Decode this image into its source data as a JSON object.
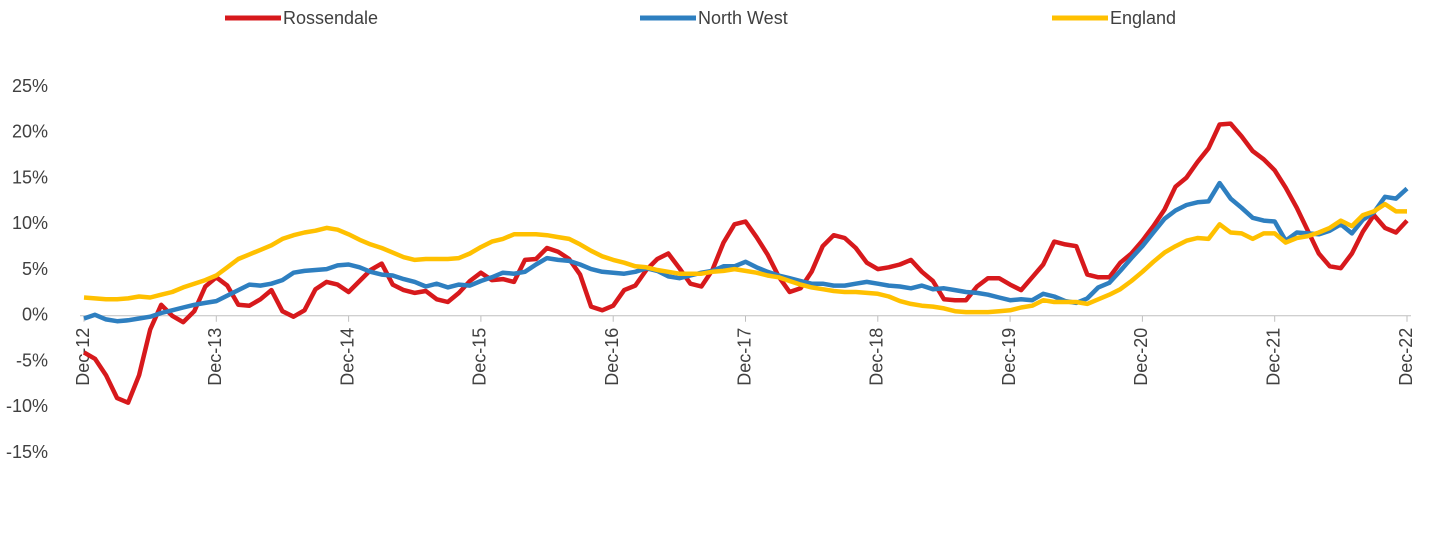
{
  "chart_data": {
    "type": "line",
    "categories": [
      "Dec-12",
      null,
      null,
      null,
      null,
      null,
      null,
      null,
      null,
      null,
      null,
      null,
      "Dec-13",
      null,
      null,
      null,
      null,
      null,
      null,
      null,
      null,
      null,
      null,
      null,
      "Dec-14",
      null,
      null,
      null,
      null,
      null,
      null,
      null,
      null,
      null,
      null,
      null,
      "Dec-15",
      null,
      null,
      null,
      null,
      null,
      null,
      null,
      null,
      null,
      null,
      null,
      "Dec-16",
      null,
      null,
      null,
      null,
      null,
      null,
      null,
      null,
      null,
      null,
      null,
      "Dec-17",
      null,
      null,
      null,
      null,
      null,
      null,
      null,
      null,
      null,
      null,
      null,
      "Dec-18",
      null,
      null,
      null,
      null,
      null,
      null,
      null,
      null,
      null,
      null,
      null,
      "Dec-19",
      null,
      null,
      null,
      null,
      null,
      null,
      null,
      null,
      null,
      null,
      null,
      "Dec-20",
      null,
      null,
      null,
      null,
      null,
      null,
      null,
      null,
      null,
      null,
      null,
      "Dec-21",
      null,
      null,
      null,
      null,
      null,
      null,
      null,
      null,
      null,
      null,
      null,
      "Dec-22"
    ],
    "series": [
      {
        "name": "Rossendale",
        "color": "#d7191c",
        "values": [
          -4,
          -4.7,
          -6.5,
          -9,
          -9.5,
          -6.5,
          -1.5,
          1.2,
          0,
          -0.7,
          0.5,
          3.2,
          4.2,
          3.3,
          1.2,
          1.1,
          1.8,
          2.8,
          0.5,
          -0.1,
          0.6,
          2.9,
          3.7,
          3.4,
          2.6,
          3.8,
          5,
          5.7,
          3.4,
          2.8,
          2.5,
          2.7,
          1.8,
          1.5,
          2.5,
          3.8,
          4.7,
          3.9,
          4,
          3.7,
          6.1,
          6.2,
          7.4,
          7,
          6.2,
          4.5,
          1,
          0.6,
          1.1,
          2.8,
          3.3,
          5,
          6.2,
          6.8,
          5.2,
          3.5,
          3.2,
          5,
          8,
          10,
          10.3,
          8.6,
          6.7,
          4.3,
          2.6,
          3,
          4.8,
          7.6,
          8.8,
          8.5,
          7.4,
          5.8,
          5.1,
          5.3,
          5.6,
          6.1,
          4.8,
          3.8,
          1.8,
          1.7,
          1.7,
          3.2,
          4.1,
          4.1,
          3.4,
          2.8,
          4.2,
          5.6,
          8.1,
          7.8,
          7.6,
          4.5,
          4.2,
          4.2,
          5.8,
          6.8,
          8.2,
          9.8,
          11.6,
          14.1,
          15.1,
          16.8,
          18.3,
          20.9,
          21,
          19.6,
          18,
          17.1,
          15.9,
          14,
          11.8,
          9.3,
          6.8,
          5.4,
          5.2,
          6.8,
          9.2,
          11,
          9.6,
          9.1,
          10.4
        ]
      },
      {
        "name": "North West",
        "color": "#2e7fc0",
        "values": [
          -0.3,
          0.1,
          -0.4,
          -0.6,
          -0.5,
          -0.3,
          -0.1,
          0.3,
          0.6,
          0.9,
          1.2,
          1.4,
          1.6,
          2.2,
          2.8,
          3.4,
          3.3,
          3.5,
          3.9,
          4.7,
          4.9,
          5,
          5.1,
          5.5,
          5.6,
          5.3,
          4.8,
          4.5,
          4.4,
          4,
          3.7,
          3.2,
          3.5,
          3.1,
          3.4,
          3.3,
          3.8,
          4.2,
          4.7,
          4.6,
          4.8,
          5.6,
          6.3,
          6.1,
          6,
          5.6,
          5.1,
          4.8,
          4.7,
          4.6,
          4.8,
          5.2,
          4.9,
          4.3,
          4.1,
          4.4,
          4.7,
          4.9,
          5.4,
          5.4,
          5.9,
          5.3,
          4.8,
          4.4,
          4.1,
          3.8,
          3.5,
          3.5,
          3.3,
          3.3,
          3.5,
          3.7,
          3.5,
          3.3,
          3.2,
          3,
          3.3,
          2.9,
          3,
          2.8,
          2.6,
          2.5,
          2.3,
          2,
          1.7,
          1.8,
          1.7,
          2.4,
          2.1,
          1.6,
          1.4,
          1.9,
          3.1,
          3.6,
          4.9,
          6.3,
          7.6,
          9.1,
          10.6,
          11.5,
          12.1,
          12.4,
          12.5,
          14.5,
          12.8,
          11.8,
          10.7,
          10.4,
          10.3,
          8.2,
          9.1,
          9,
          8.9,
          9.3,
          10,
          9,
          10.5,
          11.3,
          13,
          12.8,
          13.9
        ]
      },
      {
        "name": "England",
        "color": "#ffc000",
        "values": [
          2,
          1.9,
          1.8,
          1.8,
          1.9,
          2.1,
          2,
          2.3,
          2.6,
          3.1,
          3.5,
          3.9,
          4.4,
          5.3,
          6.2,
          6.7,
          7.2,
          7.7,
          8.4,
          8.8,
          9.1,
          9.3,
          9.6,
          9.4,
          8.9,
          8.3,
          7.8,
          7.4,
          6.9,
          6.4,
          6.1,
          6.2,
          6.2,
          6.2,
          6.3,
          6.8,
          7.5,
          8.1,
          8.4,
          8.9,
          8.9,
          8.9,
          8.8,
          8.6,
          8.4,
          7.8,
          7.1,
          6.5,
          6.1,
          5.8,
          5.4,
          5.3,
          5,
          4.8,
          4.6,
          4.6,
          4.6,
          4.8,
          4.9,
          5.1,
          4.9,
          4.7,
          4.4,
          4.2,
          3.8,
          3.4,
          3.1,
          2.9,
          2.7,
          2.6,
          2.6,
          2.5,
          2.4,
          2.1,
          1.6,
          1.3,
          1.1,
          1,
          0.8,
          0.5,
          0.4,
          0.4,
          0.4,
          0.5,
          0.6,
          0.9,
          1.1,
          1.7,
          1.5,
          1.5,
          1.5,
          1.3,
          1.8,
          2.3,
          2.9,
          3.8,
          4.8,
          5.9,
          6.9,
          7.6,
          8.2,
          8.5,
          8.4,
          10,
          9.1,
          9,
          8.4,
          9,
          9,
          8,
          8.5,
          8.7,
          9.1,
          9.6,
          10.4,
          9.8,
          11,
          11.4,
          12.2,
          11.4,
          11.4
        ]
      }
    ],
    "ylim": [
      -15,
      25
    ],
    "yticks": [
      {
        "value": -15,
        "label": "-15%"
      },
      {
        "value": -10,
        "label": "-10%"
      },
      {
        "value": -5,
        "label": "-5%"
      },
      {
        "value": 0,
        "label": "0%"
      },
      {
        "value": 5,
        "label": "5%"
      },
      {
        "value": 10,
        "label": "10%"
      },
      {
        "value": 15,
        "label": "15%"
      },
      {
        "value": 20,
        "label": "20%"
      },
      {
        "value": 25,
        "label": "25%"
      }
    ],
    "grid": false,
    "legend": "top"
  }
}
